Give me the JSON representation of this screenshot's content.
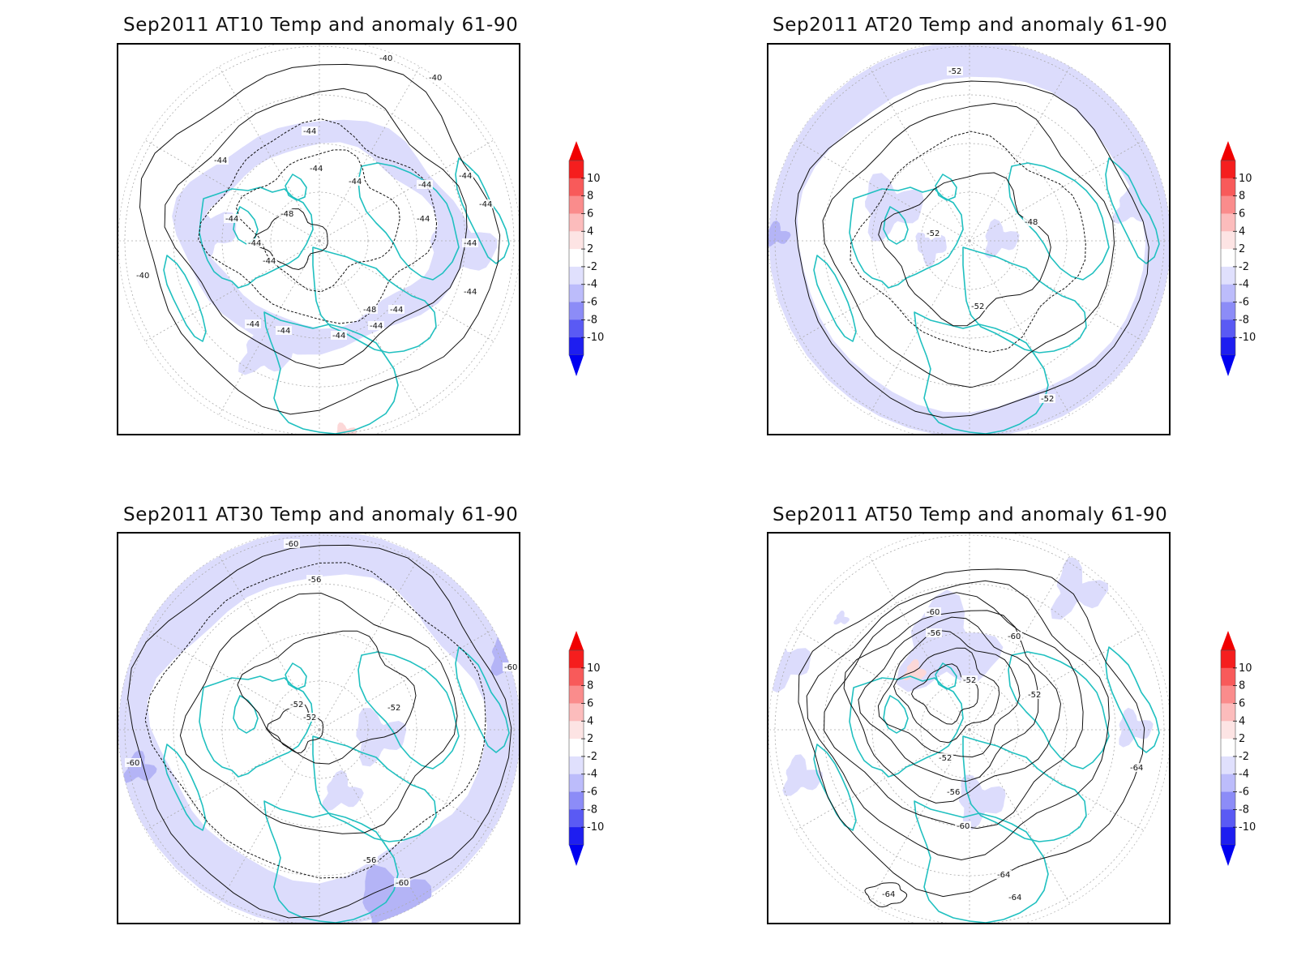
{
  "panels": [
    {
      "title": "Sep2011 AT10 Temp and anomaly 61-90",
      "contour_labels": [
        "-40",
        "-40",
        "-40",
        "-44",
        "-44",
        "-44",
        "-44",
        "-44",
        "-44",
        "-44",
        "-44",
        "-44",
        "-44",
        "-44",
        "-44",
        "-44",
        "-44",
        "-44",
        "-44",
        "-44",
        "-44",
        "-48",
        "-48"
      ]
    },
    {
      "title": "Sep2011 AT20 Temp and anomaly 61-90",
      "contour_labels": [
        "-52",
        "-52",
        "-48",
        "-52",
        "-52"
      ]
    },
    {
      "title": "Sep2011 AT30 Temp and anomaly 61-90",
      "contour_labels": [
        "-60",
        "-56",
        "-52",
        "-52",
        "-52",
        "-60",
        "-60",
        "-56",
        "-60"
      ]
    },
    {
      "title": "Sep2011 AT50 Temp and anomaly 61-90",
      "contour_labels": [
        "-60",
        "-56",
        "-60",
        "-52",
        "-52",
        "-56",
        "-60",
        "-64",
        "-64",
        "-64",
        "-64",
        "-52"
      ]
    }
  ],
  "colorbar": {
    "levels": [
      "10",
      "8",
      "6",
      "4",
      "2",
      "-2",
      "-4",
      "-6",
      "-8",
      "-10"
    ],
    "colors": [
      "#f51e1e",
      "#f85a5a",
      "#fa8c8c",
      "#fcbcbc",
      "#fde4e4",
      "#ffffff",
      "#e0e0fd",
      "#bcbcfb",
      "#8c8cf7",
      "#5a5af4",
      "#1e1ef0"
    ],
    "top_arrow_color": "#f00000",
    "bottom_arrow_color": "#0000f0"
  },
  "colors": {
    "coastline": "#20c0c0",
    "anomaly_negative_light": "#dcdcfc",
    "anomaly_negative_mid": "#b4b4f6",
    "anomaly_positive_light": "#fcd8d8",
    "contour": "#111111",
    "grid": "#aaaaaa"
  }
}
